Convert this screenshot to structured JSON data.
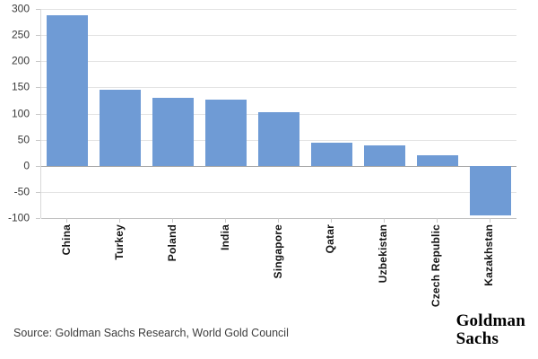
{
  "chart_data": {
    "type": "bar",
    "title": "",
    "xlabel": "",
    "ylabel": "",
    "categories": [
      "China",
      "Turkey",
      "Poland",
      "India",
      "Singapore",
      "Qatar",
      "Uzbekistan",
      "Czech Republic",
      "Kazakhstan"
    ],
    "values": [
      288,
      145,
      130,
      126,
      102,
      44,
      39,
      20,
      -94
    ],
    "ylim": [
      -100,
      300
    ],
    "yticks": [
      300,
      250,
      200,
      150,
      100,
      50,
      0,
      -50,
      -100
    ],
    "grid": true,
    "legend": null,
    "bar_color": "#6f9bd5"
  },
  "colors": {
    "bar": "#6f9bd5",
    "gridline": "#e4e4e4",
    "zero_line": "#a9a9a9",
    "bottom_line": "#bfbfbf",
    "tick": "#c9c9c9",
    "axis_label_text": "#3a3a3a",
    "category_text": "#141414",
    "background": "#ffffff"
  },
  "footer": {
    "source_text": "Source: Goldman Sachs Research, World Gold Council",
    "logo_line1": "Goldman",
    "logo_line2": "Sachs"
  }
}
